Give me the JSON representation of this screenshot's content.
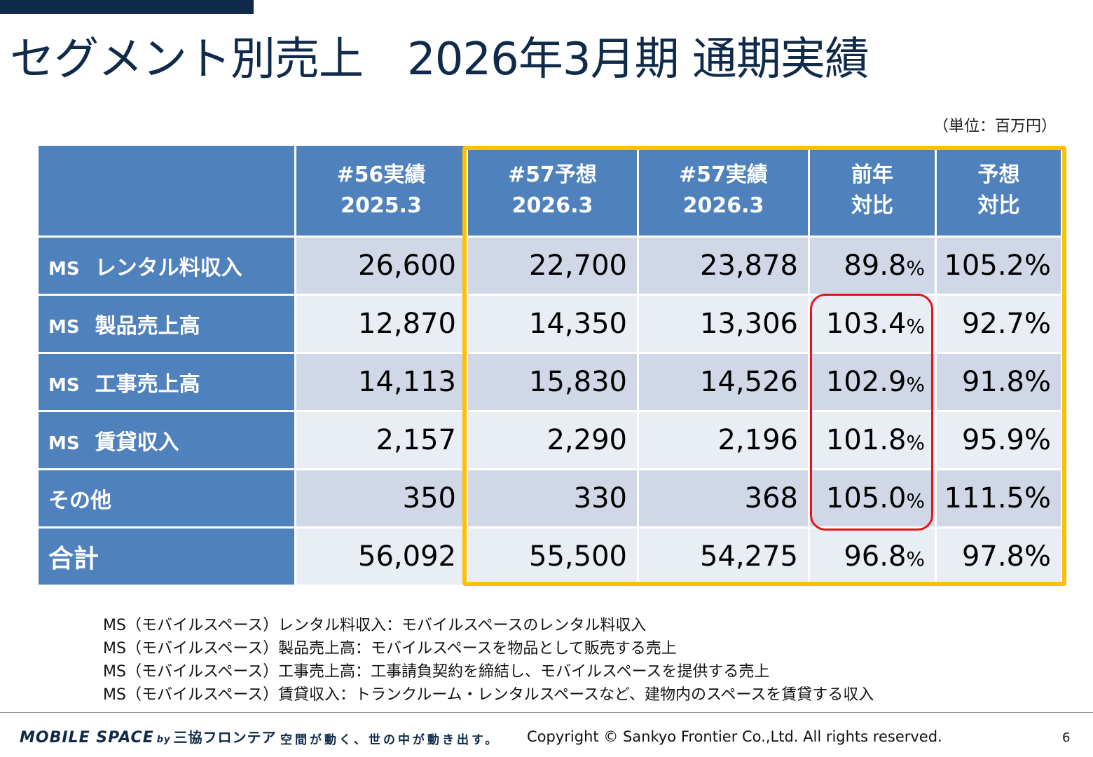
{
  "title": "セグメント別売上　2026年3月期 通期実績",
  "unit": "（単位：百万円）",
  "table": {
    "headers": [
      {
        "line1": "#56実績",
        "line2": "2025.3"
      },
      {
        "line1": "#57予想",
        "line2": "2026.3"
      },
      {
        "line1": "#57実績",
        "line2": "2026.3"
      },
      {
        "line1": "前年",
        "line2": "対比"
      },
      {
        "line1": "予想",
        "line2": "対比"
      }
    ],
    "rows": [
      {
        "prefix": "MS",
        "label": "レンタル料収入",
        "v56": "26,600",
        "f57": "22,700",
        "a57": "23,878",
        "yoy": "89.8",
        "yoy_unit": "%",
        "vsf": "105.2%"
      },
      {
        "prefix": "MS",
        "label": "製品売上高",
        "v56": "12,870",
        "f57": "14,350",
        "a57": "13,306",
        "yoy": "103.4",
        "yoy_unit": "%",
        "vsf": "92.7%"
      },
      {
        "prefix": "MS",
        "label": "工事売上高",
        "v56": "14,113",
        "f57": "15,830",
        "a57": "14,526",
        "yoy": "102.9",
        "yoy_unit": "%",
        "vsf": "91.8%"
      },
      {
        "prefix": "MS",
        "label": "賃貸収入",
        "v56": "2,157",
        "f57": "2,290",
        "a57": "2,196",
        "yoy": "101.8",
        "yoy_unit": "%",
        "vsf": "95.9%"
      },
      {
        "prefix": "",
        "label": "その他",
        "v56": "350",
        "f57": "330",
        "a57": "368",
        "yoy": "105.0",
        "yoy_unit": "%",
        "vsf": "111.5%"
      },
      {
        "prefix": "",
        "label": "合計",
        "v56": "56,092",
        "f57": "55,500",
        "a57": "54,275",
        "yoy": "96.8",
        "yoy_unit": "%",
        "vsf": "97.8%"
      }
    ]
  },
  "notes": [
    {
      "label": "MS（モバイルスペース）",
      "text": "レンタル料収入：モバイルスペースのレンタル料収入"
    },
    {
      "label": "MS（モバイルスペース）",
      "text": "製品売上高：モバイルスペースを物品として販売する売上"
    },
    {
      "label": "MS（モバイルスペース）",
      "text": "工事売上高：工事請負契約を締結し、モバイルスペースを提供する売上"
    },
    {
      "label": "MS（モバイルスペース）",
      "text": "賃貸収入：トランクルーム・レンタルスペースなど、建物内のスペースを賃貸する収入"
    }
  ],
  "footer": {
    "logo_main": "MOBILE SPACE",
    "logo_by": "by",
    "logo_company": "三協フロンテア",
    "slogan": "空間が動く、世の中が動き出す。",
    "copyright": "Copyright © Sankyo Frontier Co.,Ltd. All rights reserved.",
    "page": "6"
  },
  "colors": {
    "navy": "#0f2a4a",
    "header_blue": "#4f81bd",
    "highlight_yellow": "#ffc000",
    "highlight_red": "#e8141c"
  }
}
